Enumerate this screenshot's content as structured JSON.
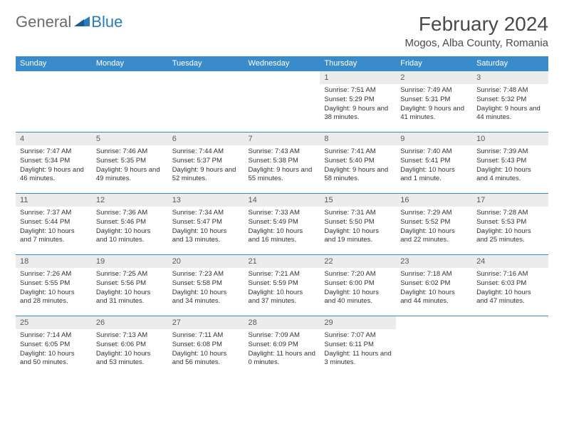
{
  "logo": {
    "general": "General",
    "blue": "Blue"
  },
  "title": "February 2024",
  "location": "Mogos, Alba County, Romania",
  "colors": {
    "header_bg": "#3a8bc9",
    "header_fg": "#ffffff",
    "daynum_bg": "#ececec",
    "border": "#3a8bc9",
    "logo_blue": "#2b7bbf",
    "logo_gray": "#6b6b6b"
  },
  "weekdays": [
    "Sunday",
    "Monday",
    "Tuesday",
    "Wednesday",
    "Thursday",
    "Friday",
    "Saturday"
  ],
  "weeks": [
    [
      null,
      null,
      null,
      null,
      {
        "n": "1",
        "sr": "Sunrise: 7:51 AM",
        "ss": "Sunset: 5:29 PM",
        "dl": "Daylight: 9 hours and 38 minutes."
      },
      {
        "n": "2",
        "sr": "Sunrise: 7:49 AM",
        "ss": "Sunset: 5:31 PM",
        "dl": "Daylight: 9 hours and 41 minutes."
      },
      {
        "n": "3",
        "sr": "Sunrise: 7:48 AM",
        "ss": "Sunset: 5:32 PM",
        "dl": "Daylight: 9 hours and 44 minutes."
      }
    ],
    [
      {
        "n": "4",
        "sr": "Sunrise: 7:47 AM",
        "ss": "Sunset: 5:34 PM",
        "dl": "Daylight: 9 hours and 46 minutes."
      },
      {
        "n": "5",
        "sr": "Sunrise: 7:46 AM",
        "ss": "Sunset: 5:35 PM",
        "dl": "Daylight: 9 hours and 49 minutes."
      },
      {
        "n": "6",
        "sr": "Sunrise: 7:44 AM",
        "ss": "Sunset: 5:37 PM",
        "dl": "Daylight: 9 hours and 52 minutes."
      },
      {
        "n": "7",
        "sr": "Sunrise: 7:43 AM",
        "ss": "Sunset: 5:38 PM",
        "dl": "Daylight: 9 hours and 55 minutes."
      },
      {
        "n": "8",
        "sr": "Sunrise: 7:41 AM",
        "ss": "Sunset: 5:40 PM",
        "dl": "Daylight: 9 hours and 58 minutes."
      },
      {
        "n": "9",
        "sr": "Sunrise: 7:40 AM",
        "ss": "Sunset: 5:41 PM",
        "dl": "Daylight: 10 hours and 1 minute."
      },
      {
        "n": "10",
        "sr": "Sunrise: 7:39 AM",
        "ss": "Sunset: 5:43 PM",
        "dl": "Daylight: 10 hours and 4 minutes."
      }
    ],
    [
      {
        "n": "11",
        "sr": "Sunrise: 7:37 AM",
        "ss": "Sunset: 5:44 PM",
        "dl": "Daylight: 10 hours and 7 minutes."
      },
      {
        "n": "12",
        "sr": "Sunrise: 7:36 AM",
        "ss": "Sunset: 5:46 PM",
        "dl": "Daylight: 10 hours and 10 minutes."
      },
      {
        "n": "13",
        "sr": "Sunrise: 7:34 AM",
        "ss": "Sunset: 5:47 PM",
        "dl": "Daylight: 10 hours and 13 minutes."
      },
      {
        "n": "14",
        "sr": "Sunrise: 7:33 AM",
        "ss": "Sunset: 5:49 PM",
        "dl": "Daylight: 10 hours and 16 minutes."
      },
      {
        "n": "15",
        "sr": "Sunrise: 7:31 AM",
        "ss": "Sunset: 5:50 PM",
        "dl": "Daylight: 10 hours and 19 minutes."
      },
      {
        "n": "16",
        "sr": "Sunrise: 7:29 AM",
        "ss": "Sunset: 5:52 PM",
        "dl": "Daylight: 10 hours and 22 minutes."
      },
      {
        "n": "17",
        "sr": "Sunrise: 7:28 AM",
        "ss": "Sunset: 5:53 PM",
        "dl": "Daylight: 10 hours and 25 minutes."
      }
    ],
    [
      {
        "n": "18",
        "sr": "Sunrise: 7:26 AM",
        "ss": "Sunset: 5:55 PM",
        "dl": "Daylight: 10 hours and 28 minutes."
      },
      {
        "n": "19",
        "sr": "Sunrise: 7:25 AM",
        "ss": "Sunset: 5:56 PM",
        "dl": "Daylight: 10 hours and 31 minutes."
      },
      {
        "n": "20",
        "sr": "Sunrise: 7:23 AM",
        "ss": "Sunset: 5:58 PM",
        "dl": "Daylight: 10 hours and 34 minutes."
      },
      {
        "n": "21",
        "sr": "Sunrise: 7:21 AM",
        "ss": "Sunset: 5:59 PM",
        "dl": "Daylight: 10 hours and 37 minutes."
      },
      {
        "n": "22",
        "sr": "Sunrise: 7:20 AM",
        "ss": "Sunset: 6:00 PM",
        "dl": "Daylight: 10 hours and 40 minutes."
      },
      {
        "n": "23",
        "sr": "Sunrise: 7:18 AM",
        "ss": "Sunset: 6:02 PM",
        "dl": "Daylight: 10 hours and 44 minutes."
      },
      {
        "n": "24",
        "sr": "Sunrise: 7:16 AM",
        "ss": "Sunset: 6:03 PM",
        "dl": "Daylight: 10 hours and 47 minutes."
      }
    ],
    [
      {
        "n": "25",
        "sr": "Sunrise: 7:14 AM",
        "ss": "Sunset: 6:05 PM",
        "dl": "Daylight: 10 hours and 50 minutes."
      },
      {
        "n": "26",
        "sr": "Sunrise: 7:13 AM",
        "ss": "Sunset: 6:06 PM",
        "dl": "Daylight: 10 hours and 53 minutes."
      },
      {
        "n": "27",
        "sr": "Sunrise: 7:11 AM",
        "ss": "Sunset: 6:08 PM",
        "dl": "Daylight: 10 hours and 56 minutes."
      },
      {
        "n": "28",
        "sr": "Sunrise: 7:09 AM",
        "ss": "Sunset: 6:09 PM",
        "dl": "Daylight: 11 hours and 0 minutes."
      },
      {
        "n": "29",
        "sr": "Sunrise: 7:07 AM",
        "ss": "Sunset: 6:11 PM",
        "dl": "Daylight: 11 hours and 3 minutes."
      },
      null,
      null
    ]
  ]
}
